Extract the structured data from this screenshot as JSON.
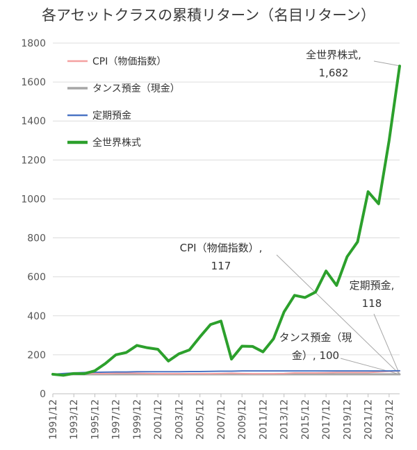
{
  "chart_data": {
    "type": "line",
    "title": "各アセットクラスの累積リターン（名目リターン）",
    "xlabel": "",
    "ylabel": "",
    "ylim": [
      0,
      1800
    ],
    "yticks": [
      0,
      200,
      400,
      600,
      800,
      1000,
      1200,
      1400,
      1600,
      1800
    ],
    "x": [
      "1991/12",
      "1992/12",
      "1993/12",
      "1994/12",
      "1995/12",
      "1996/12",
      "1997/12",
      "1998/12",
      "1999/12",
      "2000/12",
      "2001/12",
      "2002/12",
      "2003/12",
      "2004/12",
      "2005/12",
      "2006/12",
      "2007/12",
      "2008/12",
      "2009/12",
      "2010/12",
      "2011/12",
      "2012/12",
      "2013/12",
      "2014/12",
      "2015/12",
      "2016/12",
      "2017/12",
      "2018/12",
      "2019/12",
      "2020/12",
      "2021/12",
      "2022/12",
      "2023/12",
      "2024/12"
    ],
    "xtick_labels": [
      "1991/12",
      "1993/12",
      "1995/12",
      "1997/12",
      "1999/12",
      "2001/12",
      "2003/12",
      "2005/12",
      "2007/12",
      "2009/12",
      "2011/12",
      "2013/12",
      "2015/12",
      "2017/12",
      "2019/12",
      "2021/12",
      "2023/12"
    ],
    "grid": "horizontal",
    "legend_position": "top-left",
    "series": [
      {
        "name": "CPI（物価指数）",
        "color": "#f4a0a0",
        "width": 2,
        "values": [
          100,
          102,
          103,
          104,
          104,
          104,
          105,
          106,
          105,
          104,
          103,
          103,
          103,
          103,
          103,
          103,
          104,
          105,
          104,
          103,
          103,
          103,
          104,
          107,
          107,
          107,
          108,
          109,
          109,
          109,
          109,
          112,
          115,
          117
        ]
      },
      {
        "name": "タンス預金（現金）",
        "color": "#a6a6a6",
        "width": 3,
        "values": [
          100,
          100,
          100,
          100,
          100,
          100,
          100,
          100,
          100,
          100,
          100,
          100,
          100,
          100,
          100,
          100,
          100,
          100,
          100,
          100,
          100,
          100,
          100,
          100,
          100,
          100,
          100,
          100,
          100,
          100,
          100,
          100,
          100,
          100
        ]
      },
      {
        "name": "定期預金",
        "color": "#4a74c4",
        "width": 2,
        "values": [
          100,
          104,
          107,
          109,
          110,
          111,
          112,
          112,
          113,
          113,
          113,
          113,
          113,
          114,
          114,
          115,
          116,
          116,
          117,
          117,
          117,
          117,
          117,
          117,
          117,
          117,
          117,
          117,
          117,
          117,
          117,
          117,
          117,
          118
        ]
      },
      {
        "name": "全世界株式",
        "color": "#2ca02c",
        "width": 4,
        "values": [
          100,
          95,
          104,
          103,
          118,
          155,
          200,
          212,
          248,
          236,
          228,
          168,
          205,
          225,
          292,
          355,
          373,
          178,
          244,
          243,
          215,
          282,
          420,
          505,
          494,
          522,
          630,
          556,
          703,
          780,
          1037,
          975,
          1300,
          1682
        ]
      }
    ],
    "annotations": [
      {
        "lines": [
          "全世界株式,",
          "1,682"
        ]
      },
      {
        "lines": [
          "CPI（物価指数）,",
          "117"
        ]
      },
      {
        "lines": [
          "定期預金,",
          "118"
        ]
      },
      {
        "lines": [
          "タンス預金（現",
          "金）, 100"
        ]
      }
    ]
  }
}
